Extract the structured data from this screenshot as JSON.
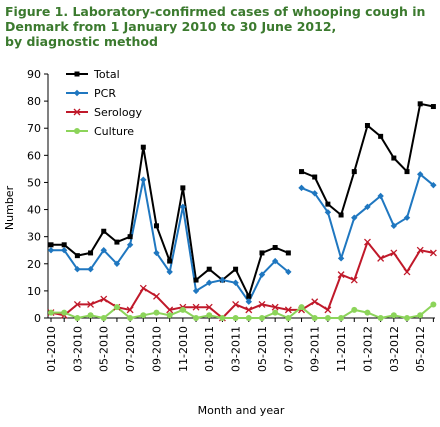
{
  "title_lines": [
    "Figure 1. Laboratory-confirmed cases of whooping cough in",
    "Denmark from 1 January 2010 to 30 June 2012,",
    "by diagnostic method"
  ],
  "chart_data": {
    "type": "line",
    "title": "Figure 1. Laboratory-confirmed cases of whooping cough in Denmark from 1 January 2010 to 30 June 2012, by diagnostic method",
    "xlabel": "Month and year",
    "ylabel": "Number",
    "ylim": [
      0,
      90
    ],
    "yticks": [
      0,
      10,
      20,
      30,
      40,
      50,
      60,
      70,
      80,
      90
    ],
    "x": [
      "01-2010",
      "02-2010",
      "03-2010",
      "04-2010",
      "05-2010",
      "06-2010",
      "07-2010",
      "08-2010",
      "09-2010",
      "10-2010",
      "11-2010",
      "12-2010",
      "01-2011",
      "02-2011",
      "03-2011",
      "04-2011",
      "05-2011",
      "06-2011",
      "07-2011",
      "08-2011",
      "09-2011",
      "10-2011",
      "11-2011",
      "12-2011",
      "01-2012",
      "02-2012",
      "03-2012",
      "04-2012",
      "05-2012",
      "06-2012"
    ],
    "xtick_labels": [
      "01-2010",
      "03-2010",
      "05-2010",
      "07-2010",
      "09-2010",
      "11-2010",
      "01-2011",
      "03-2011",
      "05-2011",
      "07-2011",
      "09-2011",
      "11-2011",
      "01-2012",
      "03-2012",
      "05-2012"
    ],
    "legend_position": "top-left",
    "grid": false,
    "series": [
      {
        "name": "Total",
        "color": "#000000",
        "marker": "square",
        "values": [
          27,
          27,
          23,
          24,
          32,
          28,
          30,
          63,
          34,
          21,
          48,
          14,
          18,
          14,
          18,
          8,
          24,
          26,
          24,
          54,
          52,
          42,
          38,
          54,
          71,
          67,
          59,
          54,
          79,
          78
        ],
        "segment_values": [
          [
            27,
            27,
            23,
            24,
            32,
            28,
            30,
            63,
            34,
            21,
            48,
            14,
            18,
            14,
            18,
            8,
            24,
            26,
            24
          ],
          [
            54,
            52,
            42,
            38,
            54,
            71,
            67,
            59,
            54,
            79,
            78
          ]
        ]
      },
      {
        "name": "PCR",
        "color": "#1f77c0",
        "marker": "diamond",
        "values": [
          25,
          25,
          18,
          18,
          25,
          20,
          27,
          51,
          24,
          17,
          41,
          10,
          13,
          14,
          13,
          6,
          16,
          21,
          17,
          48,
          46,
          39,
          22,
          37,
          41,
          45,
          34,
          37,
          53,
          49
        ],
        "segment_values": [
          [
            25,
            25,
            18,
            18,
            25,
            20,
            27,
            51,
            24,
            17,
            41,
            10,
            13,
            14,
            13,
            6,
            16,
            21,
            17
          ],
          [
            48,
            46,
            39,
            22,
            37,
            41,
            45,
            34,
            37,
            53,
            49
          ]
        ]
      },
      {
        "name": "Serology",
        "color": "#c0192a",
        "marker": "x",
        "values": [
          2,
          1,
          5,
          5,
          7,
          4,
          3,
          11,
          8,
          3,
          4,
          4,
          4,
          0,
          5,
          3,
          5,
          4,
          3,
          3,
          6,
          3,
          16,
          14,
          28,
          22,
          24,
          17,
          25,
          24
        ]
      },
      {
        "name": "Culture",
        "color": "#8cd45a",
        "marker": "circle",
        "values": [
          2,
          2,
          0,
          1,
          0,
          4,
          0,
          1,
          2,
          1,
          3,
          0,
          1,
          0,
          0,
          0,
          0,
          2,
          0,
          4,
          0,
          0,
          0,
          3,
          2,
          0,
          1,
          0,
          1,
          5
        ]
      }
    ]
  }
}
